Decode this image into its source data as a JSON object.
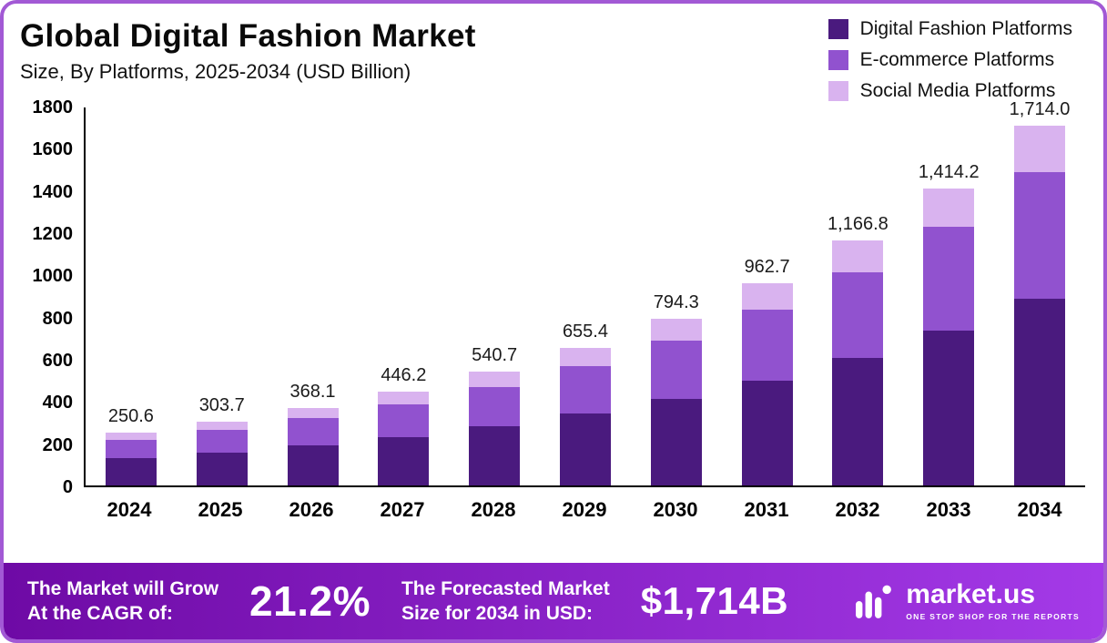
{
  "header": {
    "title": "Global Digital Fashion Market",
    "subtitle": "Size, By Platforms, 2025-2034 (USD Billion)"
  },
  "chart_data": {
    "type": "bar",
    "stacked": true,
    "title": "Global Digital Fashion Market",
    "subtitle": "Size, By Platforms, 2025-2034 (USD Billion)",
    "categories": [
      "2024",
      "2025",
      "2026",
      "2027",
      "2028",
      "2029",
      "2030",
      "2031",
      "2032",
      "2033",
      "2034"
    ],
    "series": [
      {
        "name": "Digital Fashion Platforms",
        "color": "#4a1a7e",
        "values": [
          130.3,
          157.9,
          191.4,
          232.0,
          281.2,
          340.8,
          413.0,
          500.6,
          606.7,
          735.4,
          891.3
        ]
      },
      {
        "name": "E-commerce Platforms",
        "color": "#9152cf",
        "values": [
          87.7,
          106.3,
          128.8,
          156.2,
          189.2,
          229.4,
          278.0,
          337.0,
          408.4,
          495.0,
          599.9
        ]
      },
      {
        "name": "Social Media Platforms",
        "color": "#d9b3ef",
        "values": [
          32.6,
          39.5,
          47.9,
          58.0,
          70.3,
          85.2,
          103.3,
          125.1,
          151.7,
          183.8,
          222.8
        ]
      }
    ],
    "totals": [
      250.6,
      303.7,
      368.1,
      446.2,
      540.7,
      655.4,
      794.3,
      962.7,
      1166.8,
      1414.2,
      1714.0
    ],
    "total_labels": [
      "250.6",
      "303.7",
      "368.1",
      "446.2",
      "540.7",
      "655.4",
      "794.3",
      "962.7",
      "1,166.8",
      "1,414.2",
      "1,714.0"
    ],
    "xlabel": "",
    "ylabel": "",
    "ylim": [
      0,
      1800
    ],
    "yticks": [
      0,
      200,
      400,
      600,
      800,
      1000,
      1200,
      1400,
      1600,
      1800
    ],
    "grid": false,
    "legend_position": "top-right"
  },
  "footer": {
    "cagr_label_line1": "The Market will Grow",
    "cagr_label_line2": "At the CAGR of:",
    "cagr_value": "21.2%",
    "forecast_label_line1": "The Forecasted Market",
    "forecast_label_line2": "Size for 2034 in USD:",
    "forecast_value": "$1,714B",
    "brand_name": "market.us",
    "brand_tagline": "ONE STOP SHOP FOR THE REPORTS"
  },
  "colors": {
    "border": "#a259d5",
    "footer_gradient_start": "#6e0aa5",
    "footer_gradient_end": "#a43ae8",
    "axis": "#000000",
    "value_label": "#1b1b1b"
  }
}
